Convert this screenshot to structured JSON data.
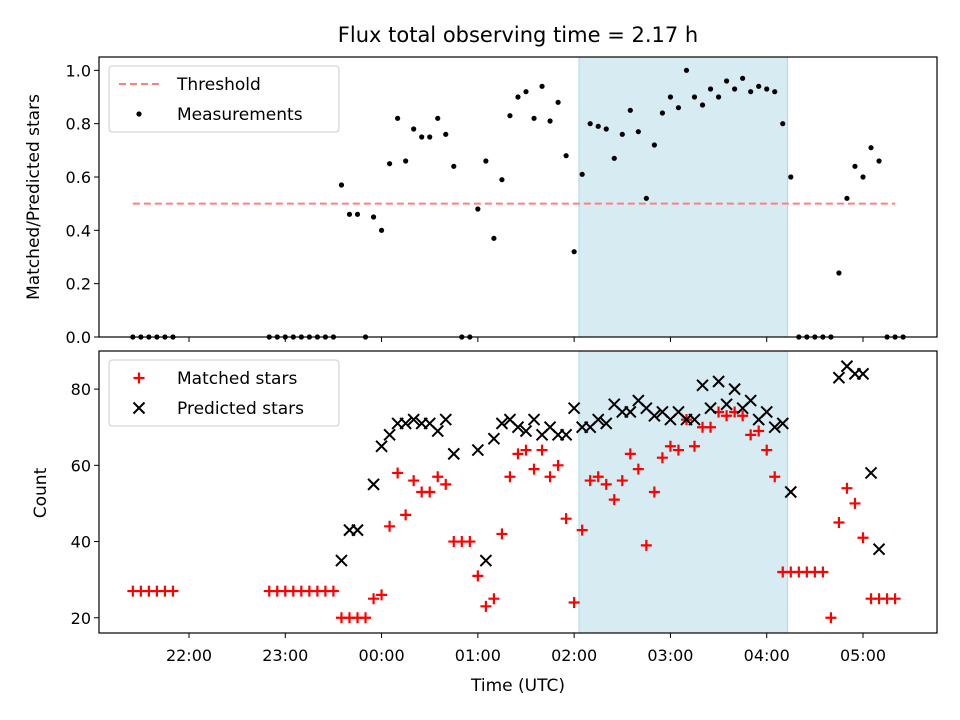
{
  "title": "Flux total observing time = 2.17 h",
  "colors": {
    "threshold": "#ff7f7f",
    "measurements": "#000000",
    "matched": "#ff0000",
    "predicted": "#000000",
    "shade": "#add8e6"
  },
  "chart_data": [
    {
      "type": "scatter",
      "ylabel": "Matched/Predicted stars",
      "xlabel": "",
      "ylim": [
        0,
        1.05
      ],
      "yticks": [
        "0.0",
        "0.2",
        "0.4",
        "0.6",
        "0.8",
        "1.0"
      ],
      "legend_position": "top-left",
      "shaded_interval": [
        "02:03",
        "04:13"
      ],
      "series": [
        {
          "name": "Threshold",
          "style": "dashed-line",
          "points": [
            [
              "21:25",
              0.5
            ],
            [
              "05:20",
              0.5
            ]
          ]
        },
        {
          "name": "Measurements",
          "style": "dot",
          "points": [
            [
              "21:25",
              0
            ],
            [
              "21:30",
              0
            ],
            [
              "21:35",
              0
            ],
            [
              "21:40",
              0
            ],
            [
              "21:45",
              0
            ],
            [
              "21:50",
              0
            ],
            [
              "22:50",
              0
            ],
            [
              "22:55",
              0
            ],
            [
              "23:00",
              0
            ],
            [
              "23:05",
              0
            ],
            [
              "23:10",
              0
            ],
            [
              "23:15",
              0
            ],
            [
              "23:20",
              0
            ],
            [
              "23:25",
              0
            ],
            [
              "23:30",
              0
            ],
            [
              "23:35",
              0.57
            ],
            [
              "23:40",
              0.46
            ],
            [
              "23:45",
              0.46
            ],
            [
              "23:50",
              0
            ],
            [
              "23:55",
              0.45
            ],
            [
              "00:00",
              0.4
            ],
            [
              "00:05",
              0.65
            ],
            [
              "00:10",
              0.82
            ],
            [
              "00:15",
              0.66
            ],
            [
              "00:20",
              0.78
            ],
            [
              "00:25",
              0.75
            ],
            [
              "00:30",
              0.75
            ],
            [
              "00:35",
              0.82
            ],
            [
              "00:40",
              0.76
            ],
            [
              "00:45",
              0.64
            ],
            [
              "00:50",
              0
            ],
            [
              "00:55",
              0
            ],
            [
              "01:00",
              0.48
            ],
            [
              "01:05",
              0.66
            ],
            [
              "01:10",
              0.37
            ],
            [
              "01:15",
              0.59
            ],
            [
              "01:20",
              0.83
            ],
            [
              "01:25",
              0.9
            ],
            [
              "01:30",
              0.92
            ],
            [
              "01:35",
              0.82
            ],
            [
              "01:40",
              0.94
            ],
            [
              "01:45",
              0.81
            ],
            [
              "01:50",
              0.88
            ],
            [
              "01:55",
              0.68
            ],
            [
              "02:00",
              0.32
            ],
            [
              "02:05",
              0.61
            ],
            [
              "02:10",
              0.8
            ],
            [
              "02:15",
              0.79
            ],
            [
              "02:20",
              0.78
            ],
            [
              "02:25",
              0.67
            ],
            [
              "02:30",
              0.76
            ],
            [
              "02:35",
              0.85
            ],
            [
              "02:40",
              0.77
            ],
            [
              "02:45",
              0.52
            ],
            [
              "02:50",
              0.72
            ],
            [
              "02:55",
              0.84
            ],
            [
              "03:00",
              0.9
            ],
            [
              "03:05",
              0.86
            ],
            [
              "03:10",
              1.0
            ],
            [
              "03:15",
              0.9
            ],
            [
              "03:20",
              0.87
            ],
            [
              "03:25",
              0.93
            ],
            [
              "03:30",
              0.9
            ],
            [
              "03:35",
              0.96
            ],
            [
              "03:40",
              0.93
            ],
            [
              "03:45",
              0.97
            ],
            [
              "03:50",
              0.92
            ],
            [
              "03:55",
              0.94
            ],
            [
              "04:00",
              0.93
            ],
            [
              "04:05",
              0.92
            ],
            [
              "04:10",
              0.8
            ],
            [
              "04:15",
              0.6
            ],
            [
              "04:20",
              0
            ],
            [
              "04:25",
              0
            ],
            [
              "04:30",
              0
            ],
            [
              "04:35",
              0
            ],
            [
              "04:40",
              0
            ],
            [
              "04:45",
              0.24
            ],
            [
              "04:50",
              0.52
            ],
            [
              "04:55",
              0.64
            ],
            [
              "05:00",
              0.6
            ],
            [
              "05:05",
              0.71
            ],
            [
              "05:10",
              0.66
            ],
            [
              "05:15",
              0
            ],
            [
              "05:20",
              0
            ],
            [
              "05:25",
              0
            ]
          ]
        }
      ]
    },
    {
      "type": "scatter",
      "ylabel": "Count",
      "xlabel": "Time (UTC)",
      "ylim": [
        16,
        90
      ],
      "yticks": [
        "20",
        "40",
        "60",
        "80"
      ],
      "xticks": [
        "22:00",
        "23:00",
        "00:00",
        "01:00",
        "02:00",
        "03:00",
        "04:00",
        "05:00"
      ],
      "legend_position": "top-left",
      "shaded_interval": [
        "02:03",
        "04:13"
      ],
      "series": [
        {
          "name": "Matched stars",
          "style": "plus",
          "points": [
            [
              "21:25",
              27
            ],
            [
              "21:30",
              27
            ],
            [
              "21:35",
              27
            ],
            [
              "21:40",
              27
            ],
            [
              "21:45",
              27
            ],
            [
              "21:50",
              27
            ],
            [
              "22:50",
              27
            ],
            [
              "22:55",
              27
            ],
            [
              "23:00",
              27
            ],
            [
              "23:05",
              27
            ],
            [
              "23:10",
              27
            ],
            [
              "23:15",
              27
            ],
            [
              "23:20",
              27
            ],
            [
              "23:25",
              27
            ],
            [
              "23:30",
              27
            ],
            [
              "23:35",
              20
            ],
            [
              "23:40",
              20
            ],
            [
              "23:45",
              20
            ],
            [
              "23:50",
              20
            ],
            [
              "23:55",
              25
            ],
            [
              "00:00",
              26
            ],
            [
              "00:05",
              44
            ],
            [
              "00:10",
              58
            ],
            [
              "00:15",
              47
            ],
            [
              "00:20",
              56
            ],
            [
              "00:25",
              53
            ],
            [
              "00:30",
              53
            ],
            [
              "00:35",
              57
            ],
            [
              "00:40",
              55
            ],
            [
              "00:45",
              40
            ],
            [
              "00:50",
              40
            ],
            [
              "00:55",
              40
            ],
            [
              "01:00",
              31
            ],
            [
              "01:05",
              23
            ],
            [
              "01:10",
              25
            ],
            [
              "01:15",
              42
            ],
            [
              "01:20",
              57
            ],
            [
              "01:25",
              63
            ],
            [
              "01:30",
              64
            ],
            [
              "01:35",
              59
            ],
            [
              "01:40",
              64
            ],
            [
              "01:45",
              57
            ],
            [
              "01:50",
              60
            ],
            [
              "01:55",
              46
            ],
            [
              "02:00",
              24
            ],
            [
              "02:05",
              43
            ],
            [
              "02:10",
              56
            ],
            [
              "02:15",
              57
            ],
            [
              "02:20",
              55
            ],
            [
              "02:25",
              51
            ],
            [
              "02:30",
              56
            ],
            [
              "02:35",
              63
            ],
            [
              "02:40",
              59
            ],
            [
              "02:45",
              39
            ],
            [
              "02:50",
              53
            ],
            [
              "02:55",
              62
            ],
            [
              "03:00",
              65
            ],
            [
              "03:05",
              64
            ],
            [
              "03:10",
              72
            ],
            [
              "03:15",
              65
            ],
            [
              "03:20",
              70
            ],
            [
              "03:25",
              70
            ],
            [
              "03:30",
              74
            ],
            [
              "03:35",
              73
            ],
            [
              "03:40",
              74
            ],
            [
              "03:45",
              73
            ],
            [
              "03:50",
              68
            ],
            [
              "03:55",
              69
            ],
            [
              "04:00",
              64
            ],
            [
              "04:05",
              57
            ],
            [
              "04:10",
              32
            ],
            [
              "04:15",
              32
            ],
            [
              "04:20",
              32
            ],
            [
              "04:25",
              32
            ],
            [
              "04:30",
              32
            ],
            [
              "04:35",
              32
            ],
            [
              "04:40",
              20
            ],
            [
              "04:45",
              45
            ],
            [
              "04:50",
              54
            ],
            [
              "04:55",
              50
            ],
            [
              "05:00",
              41
            ],
            [
              "05:05",
              25
            ],
            [
              "05:10",
              25
            ],
            [
              "05:15",
              25
            ],
            [
              "05:20",
              25
            ]
          ]
        },
        {
          "name": "Predicted stars",
          "style": "x",
          "points": [
            [
              "23:35",
              35
            ],
            [
              "23:40",
              43
            ],
            [
              "23:45",
              43
            ],
            [
              "23:55",
              55
            ],
            [
              "00:00",
              65
            ],
            [
              "00:05",
              68
            ],
            [
              "00:10",
              71
            ],
            [
              "00:15",
              71
            ],
            [
              "00:20",
              72
            ],
            [
              "00:25",
              71
            ],
            [
              "00:30",
              71
            ],
            [
              "00:35",
              69
            ],
            [
              "00:40",
              72
            ],
            [
              "00:45",
              63
            ],
            [
              "01:00",
              64
            ],
            [
              "01:05",
              35
            ],
            [
              "01:10",
              67
            ],
            [
              "01:15",
              71
            ],
            [
              "01:20",
              72
            ],
            [
              "01:25",
              70
            ],
            [
              "01:30",
              69
            ],
            [
              "01:35",
              72
            ],
            [
              "01:40",
              68
            ],
            [
              "01:45",
              70
            ],
            [
              "01:50",
              68
            ],
            [
              "01:55",
              68
            ],
            [
              "02:00",
              75
            ],
            [
              "02:05",
              70
            ],
            [
              "02:10",
              70
            ],
            [
              "02:15",
              72
            ],
            [
              "02:20",
              71
            ],
            [
              "02:25",
              76
            ],
            [
              "02:30",
              74
            ],
            [
              "02:35",
              74
            ],
            [
              "02:40",
              77
            ],
            [
              "02:45",
              75
            ],
            [
              "02:50",
              73
            ],
            [
              "02:55",
              74
            ],
            [
              "03:00",
              72
            ],
            [
              "03:05",
              74
            ],
            [
              "03:10",
              72
            ],
            [
              "03:15",
              72
            ],
            [
              "03:20",
              81
            ],
            [
              "03:25",
              75
            ],
            [
              "03:30",
              82
            ],
            [
              "03:35",
              76
            ],
            [
              "03:40",
              80
            ],
            [
              "03:45",
              75
            ],
            [
              "03:50",
              77
            ],
            [
              "03:55",
              72
            ],
            [
              "04:00",
              74
            ],
            [
              "04:05",
              70
            ],
            [
              "04:10",
              71
            ],
            [
              "04:15",
              53
            ],
            [
              "04:45",
              83
            ],
            [
              "04:50",
              86
            ],
            [
              "04:55",
              84
            ],
            [
              "05:00",
              84
            ],
            [
              "05:05",
              58
            ],
            [
              "05:10",
              38
            ]
          ]
        }
      ]
    }
  ]
}
